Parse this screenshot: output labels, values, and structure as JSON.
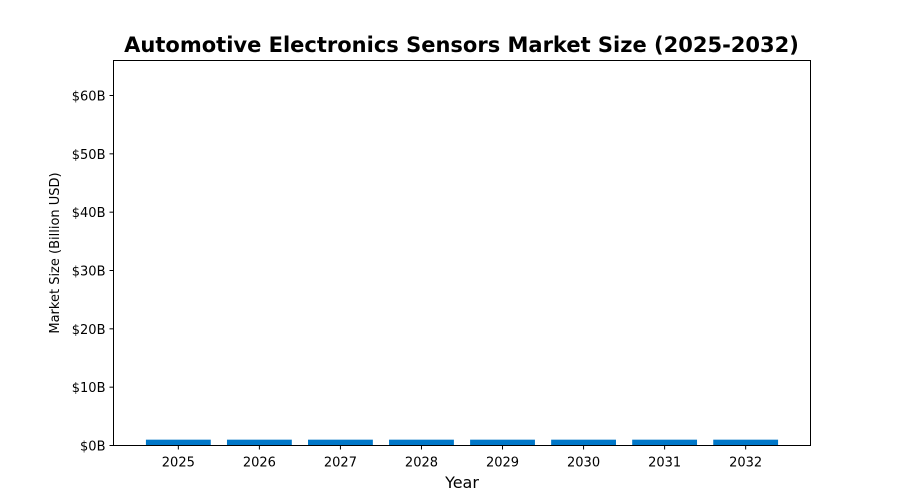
{
  "chart_data": {
    "type": "bar",
    "title": "Automotive Electronics Sensors Market Size (2025-2032)",
    "xlabel": "Year",
    "ylabel": "Market Size (Billion USD)",
    "categories": [
      "2025",
      "2026",
      "2027",
      "2028",
      "2029",
      "2030",
      "2031",
      "2032"
    ],
    "values": [
      1.0,
      1.0,
      1.0,
      1.0,
      1.0,
      1.0,
      1.0,
      1.0
    ],
    "ylim": [
      0,
      66
    ],
    "yticks": [
      0,
      10,
      20,
      30,
      40,
      50,
      60
    ],
    "ytick_labels": [
      "$0B",
      "$10B",
      "$20B",
      "$30B",
      "$40B",
      "$50B",
      "$60B"
    ],
    "bar_color": "#0077c8",
    "grid": false,
    "legend": "none"
  }
}
